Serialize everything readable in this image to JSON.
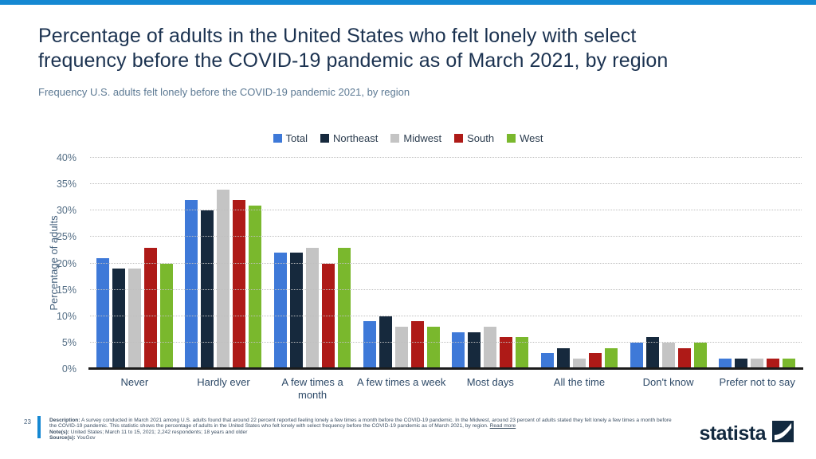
{
  "page": {
    "top_bar_color": "#1588d2"
  },
  "header": {
    "title": "Percentage of adults in the United States who felt lonely with select frequency before the COVID-19 pandemic as of March 2021, by region",
    "subtitle": "Frequency U.S. adults felt lonely before the COVID-19 pandemic 2021, by region"
  },
  "chart_data": {
    "type": "bar",
    "title": "",
    "categories": [
      "Never",
      "Hardly ever",
      "A few times a month",
      "A few times a week",
      "Most days",
      "All the time",
      "Don't know",
      "Prefer not to say"
    ],
    "series": [
      {
        "name": "Total",
        "color": "#3e79d8",
        "values": [
          21,
          32,
          22,
          9,
          7,
          3,
          5,
          2
        ]
      },
      {
        "name": "Northeast",
        "color": "#16293d",
        "values": [
          19,
          30,
          22,
          10,
          7,
          4,
          6,
          2
        ]
      },
      {
        "name": "Midwest",
        "color": "#c4c4c4",
        "values": [
          19,
          34,
          23,
          8,
          8,
          2,
          5,
          2
        ]
      },
      {
        "name": "South",
        "color": "#ae1a17",
        "values": [
          23,
          32,
          20,
          9,
          6,
          3,
          4,
          2
        ]
      },
      {
        "name": "West",
        "color": "#7ab82d",
        "values": [
          20,
          31,
          23,
          8,
          6,
          4,
          5,
          2
        ]
      }
    ],
    "xlabel": "",
    "ylabel": "Percentage of adults",
    "ylim": [
      0,
      40
    ],
    "ytick_step": 5,
    "ytick_suffix": "%",
    "grid": "horizontal-dotted",
    "legend_position": "top-center"
  },
  "footer": {
    "page_number": "23",
    "description_label": "Description:",
    "description": "A survey conducted in March 2021 among U.S. adults found that around 22 percent reported feeling lonely a few times a month before the COVID-19 pandemic. In the Midwest, around 23 percent of adults stated they felt lonely a few times a month before the COVID-19 pandemic. This statistic shows the percentage of adults in the United States who felt lonely with select frequency before the COVID-19 pandemic as of March 2021, by region.",
    "read_more": "Read more",
    "note_label": "Note(s):",
    "note": "United States; March 11 to 15, 2021; 2,242 respondents; 18 years and older",
    "source_label": "Source(s):",
    "source": "YouGov"
  },
  "branding": {
    "logo_text": "statista"
  }
}
